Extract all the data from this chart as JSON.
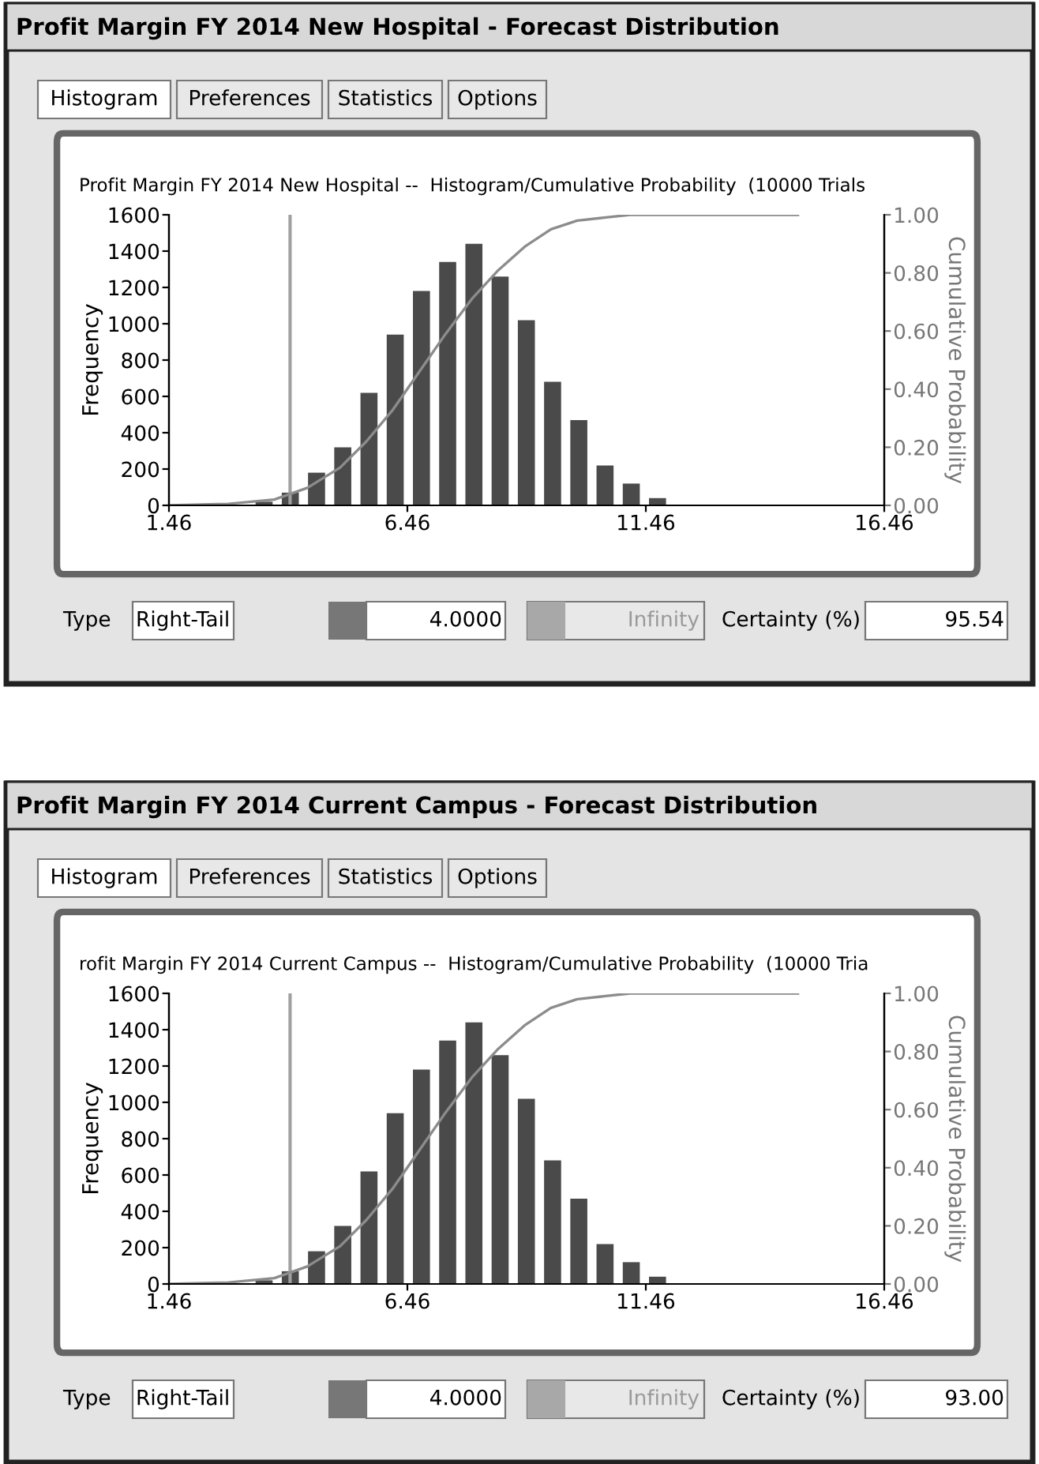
{
  "chart_data": [
    {
      "type": "histogram",
      "title": "Profit Margin FY 2014 New Hospital - Forecast Distribution",
      "subtitle": "Profit Margin FY 2014 New Hospital --  Histogram/Cumulative Probability  (10000 Trials",
      "xlabel": null,
      "ylabel": "Frequency",
      "y2label": "Cumulative Probability",
      "bins": [
        3.18,
        3.73,
        4.28,
        4.83,
        5.38,
        5.93,
        6.48,
        7.03,
        7.58,
        8.13,
        8.68,
        9.23,
        9.78,
        10.33,
        10.88,
        11.43,
        11.98
      ],
      "values": [
        20,
        70,
        180,
        320,
        620,
        940,
        1180,
        1340,
        1440,
        1260,
        1020,
        680,
        470,
        220,
        120,
        40
      ],
      "color": "#4a4a4a",
      "series": [
        {
          "type": "line",
          "axis": "y2",
          "color": "#8c8c8c",
          "x": [
            1.46,
            2.7,
            3.67,
            4.36,
            5.05,
            5.6,
            6.16,
            6.71,
            7.26,
            7.81,
            8.37,
            8.92,
            9.47,
            10.02,
            10.58,
            11.13,
            14.65
          ],
          "values": [
            0,
            0.005,
            0.02,
            0.06,
            0.13,
            0.22,
            0.33,
            0.46,
            0.59,
            0.71,
            0.81,
            0.89,
            0.95,
            0.98,
            0.99,
            1.0,
            1.0
          ]
        }
      ],
      "xlim": [
        1.46,
        16.46
      ],
      "xticks": [
        1.46,
        6.46,
        11.46,
        16.46
      ],
      "ylim": [
        0,
        1600
      ],
      "yticks": [
        0,
        200,
        400,
        600,
        800,
        1000,
        1200,
        1400,
        1600
      ],
      "y2lim": [
        0,
        1.0
      ],
      "y2ticks": [
        {
          "value": 0,
          "label": "0.00"
        },
        {
          "value": 0.2,
          "label": "0.20"
        },
        {
          "value": 0.4,
          "label": "0.40"
        },
        {
          "value": 0.6,
          "label": "0.60"
        },
        {
          "value": 0.8,
          "label": "0.80"
        },
        {
          "value": 1.0,
          "label": "1.00"
        }
      ],
      "ref_lines": [
        {
          "axis": "x",
          "value": 4.0,
          "color": "#a0a0a0"
        }
      ],
      "annotations": [
        "Histogram",
        "Preferences",
        "Statistics",
        "Options",
        "Type",
        "Right-Tail",
        "4.0000",
        "Infinity",
        "Certainty (%)",
        "95.54"
      ],
      "grid": false,
      "legend": false
    },
    {
      "type": "histogram",
      "title": "Profit Margin FY 2014 Current Campus - Forecast Distribution",
      "subtitle": "rofit Margin FY 2014 Current Campus --  Histogram/Cumulative Probability  (10000 Tria",
      "xlabel": null,
      "ylabel": "Frequency",
      "y2label": "Cumulative Probability",
      "bins": [
        3.18,
        3.73,
        4.28,
        4.83,
        5.38,
        5.93,
        6.48,
        7.03,
        7.58,
        8.13,
        8.68,
        9.23,
        9.78,
        10.33,
        10.88,
        11.43,
        11.98
      ],
      "values": [
        20,
        70,
        180,
        320,
        620,
        940,
        1180,
        1340,
        1440,
        1260,
        1020,
        680,
        470,
        220,
        120,
        40
      ],
      "color": "#4a4a4a",
      "series": [
        {
          "type": "line",
          "axis": "y2",
          "color": "#8c8c8c",
          "x": [
            1.46,
            2.7,
            3.67,
            4.36,
            5.05,
            5.6,
            6.16,
            6.71,
            7.26,
            7.81,
            8.37,
            8.92,
            9.47,
            10.02,
            10.58,
            11.13,
            14.65
          ],
          "values": [
            0,
            0.005,
            0.02,
            0.06,
            0.13,
            0.22,
            0.33,
            0.46,
            0.59,
            0.71,
            0.81,
            0.89,
            0.95,
            0.98,
            0.99,
            1.0,
            1.0
          ]
        }
      ],
      "xlim": [
        1.46,
        16.46
      ],
      "xticks": [
        1.46,
        6.46,
        11.46,
        16.46
      ],
      "ylim": [
        0,
        1600
      ],
      "yticks": [
        0,
        200,
        400,
        600,
        800,
        1000,
        1200,
        1400,
        1600
      ],
      "y2lim": [
        0,
        1.0
      ],
      "y2ticks": [
        {
          "value": 0,
          "label": "0.00"
        },
        {
          "value": 0.2,
          "label": "0.20"
        },
        {
          "value": 0.4,
          "label": "0.40"
        },
        {
          "value": 0.6,
          "label": "0.60"
        },
        {
          "value": 0.8,
          "label": "0.80"
        },
        {
          "value": 1.0,
          "label": "1.00"
        }
      ],
      "ref_lines": [
        {
          "axis": "x",
          "value": 4.0,
          "color": "#a0a0a0"
        }
      ],
      "annotations": [
        "Histogram",
        "Preferences",
        "Statistics",
        "Options",
        "Type",
        "Right-Tail",
        "4.0000",
        "Infinity",
        "Certainty (%)",
        "93.00"
      ],
      "grid": false,
      "legend": false
    }
  ]
}
